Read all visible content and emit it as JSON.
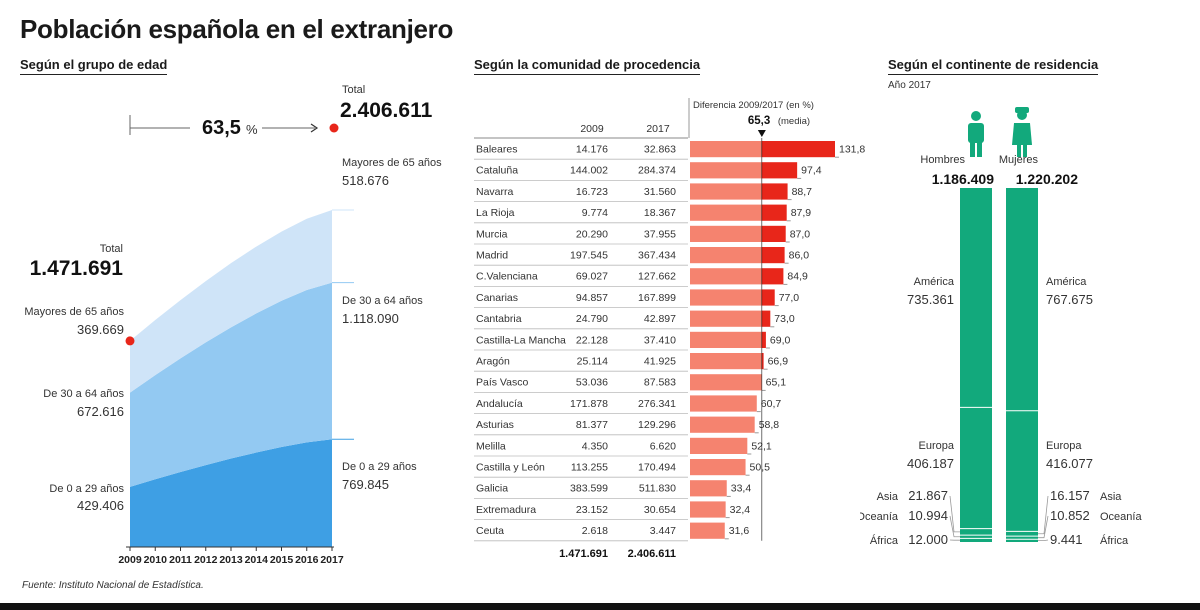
{
  "title": "Población española en el extranjero",
  "source": "Fuente: Instituto Nacional de Estadística.",
  "colors": {
    "band_old": "#cfe4f8",
    "band_mid": "#93c9f2",
    "band_young": "#3e9fe4",
    "accent_red": "#e8261a",
    "bar_light": "#f5836f",
    "bar_dark": "#e8261a",
    "green": "#12a97c"
  },
  "chart_data": [
    {
      "type": "area",
      "subtitle": "Según el grupo de edad",
      "x": [
        "2009",
        "2010",
        "2011",
        "2012",
        "2013",
        "2014",
        "2015",
        "2016",
        "2017"
      ],
      "growth_value": "63,5",
      "growth_unit": "%",
      "total_label": "Total",
      "total_2009": "1.471.691",
      "total_2017": "2.406.611",
      "series": [
        {
          "name": "De 0 a 29 años",
          "start_label": "De 0 a 29 años",
          "start_value": "429.406",
          "end_label": "De 0 a 29 años",
          "end_value": "769.845",
          "start": 429406,
          "end": 769845
        },
        {
          "name": "De 30 a 64 años",
          "start_label": "De 30 a 64 años",
          "start_value": "672.616",
          "end_label": "De 30 a 64 años",
          "end_value": "1.118.090",
          "start": 672616,
          "end": 1118090
        },
        {
          "name": "Mayores de 65 años",
          "start_label": "Mayores de 65 años",
          "start_value": "369.669",
          "end_label": "Mayores de 65 años",
          "end_value": "518.676",
          "start": 369669,
          "end": 518676
        }
      ]
    },
    {
      "type": "bar",
      "subtitle": "Según la comunidad de procedencia",
      "col_2009": "2009",
      "col_2017": "2017",
      "diff_header": "Diferencia 2009/2017 (en %)",
      "media_value": "65,3",
      "media_label": "(media)",
      "media": 65.3,
      "rows": [
        {
          "name": "Baleares",
          "v2009": "14.176",
          "v2017": "32.863",
          "diff": 131.8,
          "diff_label": "131,8"
        },
        {
          "name": "Cataluña",
          "v2009": "144.002",
          "v2017": "284.374",
          "diff": 97.4,
          "diff_label": "97,4"
        },
        {
          "name": "Navarra",
          "v2009": "16.723",
          "v2017": "31.560",
          "diff": 88.7,
          "diff_label": "88,7"
        },
        {
          "name": "La Rioja",
          "v2009": "9.774",
          "v2017": "18.367",
          "diff": 87.9,
          "diff_label": "87,9"
        },
        {
          "name": "Murcia",
          "v2009": "20.290",
          "v2017": "37.955",
          "diff": 87.0,
          "diff_label": "87,0"
        },
        {
          "name": "Madrid",
          "v2009": "197.545",
          "v2017": "367.434",
          "diff": 86.0,
          "diff_label": "86,0"
        },
        {
          "name": "C.Valenciana",
          "v2009": "69.027",
          "v2017": "127.662",
          "diff": 84.9,
          "diff_label": "84,9"
        },
        {
          "name": "Canarias",
          "v2009": "94.857",
          "v2017": "167.899",
          "diff": 77.0,
          "diff_label": "77,0"
        },
        {
          "name": "Cantabria",
          "v2009": "24.790",
          "v2017": "42.897",
          "diff": 73.0,
          "diff_label": "73,0"
        },
        {
          "name": "Castilla-La Mancha",
          "v2009": "22.128",
          "v2017": "37.410",
          "diff": 69.0,
          "diff_label": "69,0"
        },
        {
          "name": "Aragón",
          "v2009": "25.114",
          "v2017": "41.925",
          "diff": 66.9,
          "diff_label": "66,9"
        },
        {
          "name": "País Vasco",
          "v2009": "53.036",
          "v2017": "87.583",
          "diff": 65.1,
          "diff_label": "65,1"
        },
        {
          "name": "Andalucía",
          "v2009": "171.878",
          "v2017": "276.341",
          "diff": 60.7,
          "diff_label": "60,7"
        },
        {
          "name": "Asturias",
          "v2009": "81.377",
          "v2017": "129.296",
          "diff": 58.8,
          "diff_label": "58,8"
        },
        {
          "name": "Melilla",
          "v2009": "4.350",
          "v2017": "6.620",
          "diff": 52.1,
          "diff_label": "52,1"
        },
        {
          "name": "Castilla y León",
          "v2009": "113.255",
          "v2017": "170.494",
          "diff": 50.5,
          "diff_label": "50,5"
        },
        {
          "name": "Galicia",
          "v2009": "383.599",
          "v2017": "511.830",
          "diff": 33.4,
          "diff_label": "33,4"
        },
        {
          "name": "Extremadura",
          "v2009": "23.152",
          "v2017": "30.654",
          "diff": 32.4,
          "diff_label": "32,4"
        },
        {
          "name": "Ceuta",
          "v2009": "2.618",
          "v2017": "3.447",
          "diff": 31.6,
          "diff_label": "31,6"
        }
      ],
      "total_2009": "1.471.691",
      "total_2017": "2.406.611"
    },
    {
      "type": "bar",
      "subtitle": "Según el continente de residencia",
      "year_note": "Año 2017",
      "groups": [
        {
          "name": "Hombres",
          "total_label": "1.186.409",
          "total": 1186409,
          "icon": "man-icon",
          "segments": [
            {
              "name": "América",
              "label": "735.361",
              "value": 735361
            },
            {
              "name": "Europa",
              "label": "406.187",
              "value": 406187
            },
            {
              "name": "Asia",
              "label": "21.867",
              "value": 21867
            },
            {
              "name": "Oceanía",
              "label": "10.994",
              "value": 10994
            },
            {
              "name": "África",
              "label": "12.000",
              "value": 12000
            }
          ]
        },
        {
          "name": "Mujeres",
          "total_label": "1.220.202",
          "total": 1220202,
          "icon": "woman-icon",
          "segments": [
            {
              "name": "América",
              "label": "767.675",
              "value": 767675
            },
            {
              "name": "Europa",
              "label": "416.077",
              "value": 416077
            },
            {
              "name": "Asia",
              "label": "16.157",
              "value": 16157
            },
            {
              "name": "Oceanía",
              "label": "10.852",
              "value": 10852
            },
            {
              "name": "África",
              "label": "9.441",
              "value": 9441
            }
          ]
        }
      ]
    }
  ]
}
